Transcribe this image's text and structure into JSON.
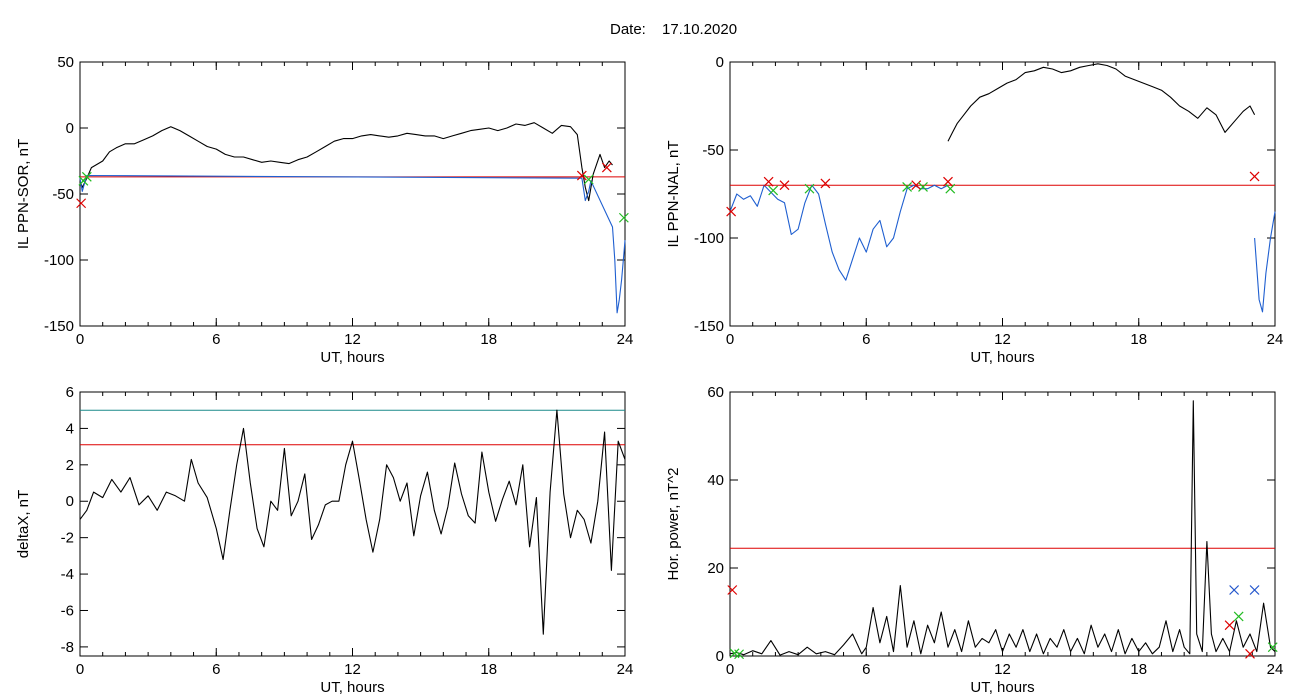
{
  "header": {
    "date_label": "Date:",
    "date_value": "17.10.2020"
  },
  "colors": {
    "black": "#000000",
    "red": "#dd0000",
    "blue": "#1f5fd0",
    "green": "#22bb22",
    "teal": "#1a8a8a",
    "blue_marker": "#2255cc"
  },
  "chart_data": [
    {
      "id": "ppn-sor",
      "type": "line",
      "title": "",
      "xlabel": "UT, hours",
      "ylabel": "IL PPN-SOR, nT",
      "xlim": [
        0,
        24
      ],
      "ylim": [
        -150,
        50
      ],
      "xticks": [
        0,
        6,
        12,
        18,
        24
      ],
      "yticks": [
        -150,
        -100,
        -50,
        0,
        50
      ],
      "grid": false,
      "series": [
        {
          "color": "#000000",
          "x": [
            0,
            0.1,
            0.3,
            0.5,
            0.7,
            1,
            1.3,
            1.6,
            2,
            2.4,
            2.8,
            3.2,
            3.6,
            4,
            4.4,
            4.8,
            5.2,
            5.6,
            6,
            6.4,
            6.8,
            7.2,
            7.6,
            8,
            8.4,
            8.8,
            9.2,
            9.6,
            10,
            10.4,
            10.8,
            11.2,
            11.6,
            12,
            12.4,
            12.8,
            13.2,
            13.6,
            14,
            14.4,
            14.8,
            15.2,
            15.6,
            16,
            16.4,
            16.8,
            17.2,
            17.6,
            18,
            18.4,
            18.8,
            19.2,
            19.6,
            20,
            20.4,
            20.8,
            21.2,
            21.6,
            21.9,
            22.1,
            22.25,
            22.4,
            22.6,
            22.9,
            23.1,
            23.3,
            23.45
          ],
          "y": [
            -40,
            -45,
            -38,
            -30,
            -28,
            -25,
            -18,
            -15,
            -12,
            -12,
            -9,
            -6,
            -2,
            1,
            -2,
            -6,
            -10,
            -14,
            -16,
            -20,
            -22,
            -22,
            -24,
            -26,
            -25,
            -26,
            -27,
            -24,
            -22,
            -18,
            -14,
            -10,
            -8,
            -8,
            -6,
            -5,
            -6,
            -7,
            -6,
            -4,
            -5,
            -6,
            -6,
            -8,
            -6,
            -4,
            -2,
            -1,
            0,
            -2,
            0,
            3,
            2,
            4,
            0,
            -4,
            2,
            1,
            -5,
            -30,
            -45,
            -55,
            -35,
            -20,
            -30,
            -25,
            -28
          ]
        },
        {
          "color": "#1f5fd0",
          "x": [
            0,
            0.1,
            0.2,
            0.3,
            22.1,
            22.25,
            22.4,
            22.5,
            23.45,
            23.55,
            23.65,
            23.75,
            23.85,
            23.95,
            24
          ],
          "y": [
            -38,
            -48,
            -42,
            -36,
            -38,
            -55,
            -48,
            -40,
            -75,
            -100,
            -140,
            -130,
            -115,
            -95,
            -85
          ]
        }
      ],
      "hlines": [
        {
          "y": -37,
          "color": "#dd0000"
        }
      ],
      "markers": [
        {
          "x": 0.05,
          "y": -57,
          "color": "#dd0000",
          "symbol": "x"
        },
        {
          "x": 0.15,
          "y": -40,
          "color": "#22bb22",
          "symbol": "x"
        },
        {
          "x": 0.3,
          "y": -37,
          "color": "#22bb22",
          "symbol": "x"
        },
        {
          "x": 22.1,
          "y": -36,
          "color": "#dd0000",
          "symbol": "x"
        },
        {
          "x": 22.4,
          "y": -39,
          "color": "#22bb22",
          "symbol": "x"
        },
        {
          "x": 23.2,
          "y": -30,
          "color": "#dd0000",
          "symbol": "x"
        },
        {
          "x": 23.95,
          "y": -68,
          "color": "#22bb22",
          "symbol": "x"
        }
      ]
    },
    {
      "id": "ppn-nal",
      "type": "line",
      "title": "",
      "xlabel": "UT, hours",
      "ylabel": "IL PPN-NAL, nT",
      "xlim": [
        0,
        24
      ],
      "ylim": [
        -150,
        0
      ],
      "xticks": [
        0,
        6,
        12,
        18,
        24
      ],
      "yticks": [
        -150,
        -100,
        -50,
        0
      ],
      "grid": false,
      "series": [
        {
          "color": "#1f5fd0",
          "x": [
            0,
            0.3,
            0.6,
            0.9,
            1.2,
            1.5,
            1.8,
            2.1,
            2.4,
            2.7,
            3,
            3.3,
            3.6,
            3.9,
            4.2,
            4.5,
            4.8,
            5.1,
            5.4,
            5.7,
            6,
            6.3,
            6.6,
            6.9,
            7.2,
            7.5,
            7.8,
            8.1,
            8.4,
            8.7,
            9,
            9.3,
            9.6
          ],
          "y": [
            -85,
            -75,
            -78,
            -76,
            -82,
            -70,
            -74,
            -78,
            -80,
            -98,
            -95,
            -80,
            -70,
            -75,
            -92,
            -108,
            -118,
            -124,
            -112,
            -100,
            -108,
            -95,
            -90,
            -105,
            -100,
            -85,
            -72,
            -70,
            -72,
            -72,
            -70,
            -72,
            -70
          ]
        },
        {
          "color": "#000000",
          "x": [
            9.6,
            9.8,
            10,
            10.3,
            10.6,
            11,
            11.4,
            11.8,
            12.2,
            12.6,
            13,
            13.4,
            13.8,
            14.2,
            14.6,
            15,
            15.4,
            15.8,
            16.2,
            16.6,
            17,
            17.4,
            17.8,
            18.2,
            18.6,
            19,
            19.4,
            19.8,
            20.2,
            20.6,
            21,
            21.4,
            21.8,
            22.2,
            22.6,
            22.9,
            23.1
          ],
          "y": [
            -45,
            -40,
            -35,
            -30,
            -25,
            -20,
            -18,
            -15,
            -12,
            -10,
            -6,
            -5,
            -3,
            -4,
            -6,
            -5,
            -3,
            -2,
            -1,
            -2,
            -4,
            -8,
            -10,
            -12,
            -14,
            -16,
            -20,
            -25,
            -28,
            -32,
            -26,
            -30,
            -40,
            -34,
            -28,
            -25,
            -30
          ]
        },
        {
          "color": "#1f5fd0",
          "x": [
            23.1,
            23.3,
            23.45,
            23.6,
            23.8,
            24
          ],
          "y": [
            -100,
            -135,
            -142,
            -120,
            -100,
            -85
          ]
        }
      ],
      "hlines": [
        {
          "y": -70,
          "color": "#dd0000"
        }
      ],
      "markers": [
        {
          "x": 0.05,
          "y": -85,
          "color": "#dd0000",
          "symbol": "x"
        },
        {
          "x": 1.7,
          "y": -68,
          "color": "#dd0000",
          "symbol": "x"
        },
        {
          "x": 1.9,
          "y": -73,
          "color": "#22bb22",
          "symbol": "x"
        },
        {
          "x": 2.4,
          "y": -70,
          "color": "#dd0000",
          "symbol": "x"
        },
        {
          "x": 3.5,
          "y": -72,
          "color": "#22bb22",
          "symbol": "x"
        },
        {
          "x": 4.2,
          "y": -69,
          "color": "#dd0000",
          "symbol": "x"
        },
        {
          "x": 7.8,
          "y": -71,
          "color": "#22bb22",
          "symbol": "x"
        },
        {
          "x": 8.2,
          "y": -70,
          "color": "#dd0000",
          "symbol": "x"
        },
        {
          "x": 8.5,
          "y": -71,
          "color": "#22bb22",
          "symbol": "x"
        },
        {
          "x": 9.6,
          "y": -68,
          "color": "#dd0000",
          "symbol": "x"
        },
        {
          "x": 9.7,
          "y": -72,
          "color": "#22bb22",
          "symbol": "x"
        },
        {
          "x": 23.1,
          "y": -65,
          "color": "#dd0000",
          "symbol": "x"
        }
      ]
    },
    {
      "id": "deltax",
      "type": "line",
      "title": "",
      "xlabel": "UT, hours",
      "ylabel": "deltaX, nT",
      "xlim": [
        0,
        24
      ],
      "ylim": [
        -8.5,
        6
      ],
      "xticks": [
        0,
        6,
        12,
        18,
        24
      ],
      "yticks": [
        -8,
        -6,
        -4,
        -2,
        0,
        2,
        4,
        6
      ],
      "grid": false,
      "series": [
        {
          "color": "#000000",
          "x": [
            0,
            0.3,
            0.6,
            1,
            1.4,
            1.8,
            2.2,
            2.6,
            3,
            3.4,
            3.8,
            4.2,
            4.6,
            4.9,
            5.2,
            5.6,
            6,
            6.3,
            6.6,
            6.9,
            7.2,
            7.5,
            7.8,
            8.1,
            8.4,
            8.7,
            9,
            9.3,
            9.6,
            9.9,
            10.2,
            10.5,
            10.8,
            11.1,
            11.4,
            11.7,
            12,
            12.3,
            12.6,
            12.9,
            13.2,
            13.5,
            13.8,
            14.1,
            14.4,
            14.7,
            15,
            15.3,
            15.6,
            15.9,
            16.2,
            16.5,
            16.8,
            17.1,
            17.4,
            17.7,
            18,
            18.3,
            18.6,
            18.9,
            19.2,
            19.5,
            19.8,
            20.1,
            20.4,
            20.7,
            21,
            21.3,
            21.6,
            21.9,
            22.2,
            22.5,
            22.8,
            23.1,
            23.4,
            23.7,
            24
          ],
          "y": [
            -1,
            -0.5,
            0.5,
            0.2,
            1.2,
            0.5,
            1.3,
            -0.2,
            0.3,
            -0.5,
            0.5,
            0.3,
            0,
            2.3,
            1,
            0.2,
            -1.5,
            -3.2,
            -0.5,
            2,
            4,
            1,
            -1.5,
            -2.5,
            0,
            -0.5,
            2.9,
            -0.8,
            0,
            1.5,
            -2.1,
            -1.3,
            -0.2,
            0,
            0,
            2,
            3.3,
            1.2,
            -1,
            -2.8,
            -1,
            2,
            1.3,
            0,
            1,
            -1.9,
            0.3,
            1.6,
            -0.5,
            -1.8,
            -0.3,
            2.1,
            0.4,
            -0.8,
            -1.2,
            2.7,
            0.5,
            -1.1,
            0.1,
            1.1,
            -0.2,
            2,
            -2.5,
            0.2,
            -7.3,
            0.5,
            5,
            0.4,
            -2,
            -0.5,
            -1,
            -2.3,
            0,
            3.8,
            -3.8,
            3.3,
            2.3
          ]
        }
      ],
      "hlines": [
        {
          "y": 3.1,
          "color": "#dd0000"
        },
        {
          "y": 5,
          "color": "#1a8a8a"
        }
      ],
      "markers": []
    },
    {
      "id": "hor-power",
      "type": "line",
      "title": "",
      "xlabel": "UT, hours",
      "ylabel": "Hor. power, nT^2",
      "xlim": [
        0,
        24
      ],
      "ylim": [
        0,
        60
      ],
      "xticks": [
        0,
        6,
        12,
        18,
        24
      ],
      "yticks": [
        0,
        20,
        40,
        60
      ],
      "grid": false,
      "series": [
        {
          "color": "#000000",
          "x": [
            0,
            0.3,
            0.6,
            1,
            1.4,
            1.8,
            2.2,
            2.6,
            3,
            3.4,
            3.8,
            4.2,
            4.6,
            5,
            5.4,
            5.8,
            6,
            6.3,
            6.6,
            6.9,
            7.2,
            7.5,
            7.8,
            8.1,
            8.4,
            8.7,
            9,
            9.3,
            9.6,
            9.9,
            10.2,
            10.5,
            10.8,
            11.1,
            11.4,
            11.7,
            12,
            12.3,
            12.6,
            12.9,
            13.2,
            13.5,
            13.8,
            14.1,
            14.4,
            14.7,
            15,
            15.3,
            15.6,
            15.9,
            16.2,
            16.5,
            16.8,
            17.1,
            17.4,
            17.7,
            18,
            18.3,
            18.6,
            18.9,
            19.2,
            19.5,
            19.8,
            20,
            20.25,
            20.4,
            20.55,
            20.8,
            21,
            21.2,
            21.4,
            21.7,
            22,
            22.3,
            22.6,
            22.9,
            23.2,
            23.5,
            23.8,
            24
          ],
          "y": [
            0.5,
            0.8,
            0.3,
            1.2,
            0.5,
            3.5,
            0.2,
            1,
            0.3,
            2,
            0.5,
            1,
            0.3,
            2.5,
            5,
            0.5,
            2,
            11,
            3,
            9,
            1,
            16,
            2,
            8,
            0.5,
            7,
            3,
            10,
            2,
            6,
            1,
            8,
            2,
            4,
            3,
            6,
            1,
            5,
            2,
            6,
            1,
            5,
            0.5,
            4,
            2,
            6,
            1,
            4,
            0.5,
            7,
            2,
            5,
            1,
            6,
            0.5,
            4,
            1,
            3,
            0.5,
            2,
            8,
            1,
            6,
            2,
            0.5,
            58,
            5,
            1,
            26,
            5,
            1,
            4,
            1,
            8,
            2,
            5,
            1,
            12,
            2,
            1
          ]
        }
      ],
      "hlines": [
        {
          "y": 24.5,
          "color": "#dd0000"
        }
      ],
      "markers": [
        {
          "x": 0.1,
          "y": 15,
          "color": "#dd0000",
          "symbol": "x"
        },
        {
          "x": 0.2,
          "y": 0.6,
          "color": "#22bb22",
          "symbol": "x"
        },
        {
          "x": 0.4,
          "y": 0.4,
          "color": "#22bb22",
          "symbol": "x"
        },
        {
          "x": 22.2,
          "y": 15,
          "color": "#2255cc",
          "symbol": "x"
        },
        {
          "x": 22.0,
          "y": 7,
          "color": "#dd0000",
          "symbol": "x"
        },
        {
          "x": 22.4,
          "y": 9,
          "color": "#22bb22",
          "symbol": "x"
        },
        {
          "x": 22.9,
          "y": 0.5,
          "color": "#dd0000",
          "symbol": "x"
        },
        {
          "x": 23.1,
          "y": 15,
          "color": "#2255cc",
          "symbol": "x"
        },
        {
          "x": 23.9,
          "y": 2,
          "color": "#22bb22",
          "symbol": "x"
        }
      ]
    }
  ]
}
